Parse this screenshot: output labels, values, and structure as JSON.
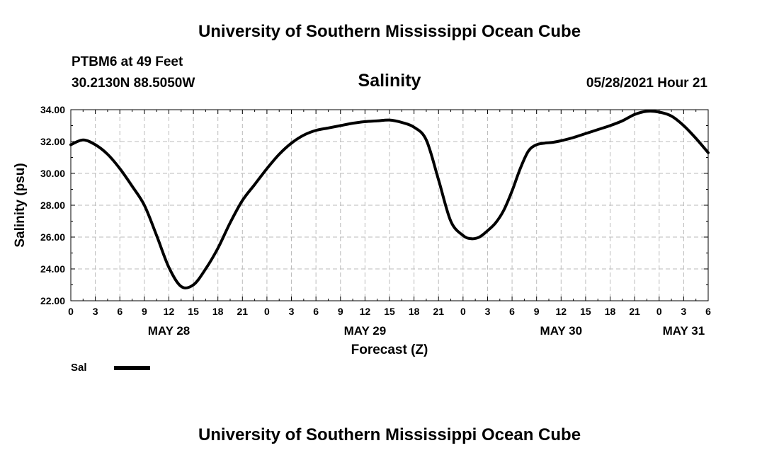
{
  "header": {
    "title_top": "University of Southern Mississippi Ocean Cube",
    "title_bottom": "University of Southern Mississippi Ocean Cube",
    "station": "PTBM6 at 49 Feet",
    "coords": "30.2130N  88.5050W",
    "datetime": "05/28/2021 Hour 21"
  },
  "chart_data": {
    "type": "line",
    "title": "Salinity",
    "xlabel": "Forecast (Z)",
    "ylabel": "Salinity (psu)",
    "ylim": [
      22,
      34
    ],
    "xlim_hours": [
      0,
      78
    ],
    "x_unit": "hours from 00Z May 28",
    "x_tick_labels": [
      "0",
      "3",
      "6",
      "9",
      "12",
      "15",
      "18",
      "21",
      "0",
      "3",
      "6",
      "9",
      "12",
      "15",
      "18",
      "21",
      "0",
      "3",
      "6",
      "9",
      "12",
      "15",
      "18",
      "21",
      "0",
      "3",
      "6"
    ],
    "date_labels": [
      {
        "label": "MAY 28",
        "hour": 12
      },
      {
        "label": "MAY 29",
        "hour": 36
      },
      {
        "label": "MAY 30",
        "hour": 60
      },
      {
        "label": "MAY 31",
        "hour": 75
      }
    ],
    "y_ticks": [
      "22.00",
      "24.00",
      "26.00",
      "28.00",
      "30.00",
      "32.00",
      "34.00"
    ],
    "grid": true,
    "legend": "bottom-left",
    "series": [
      {
        "name": "Sal",
        "color": "#000000",
        "x": [
          0,
          1.5,
          3,
          4.5,
          6,
          7.5,
          9,
          10.5,
          12,
          13.5,
          15,
          16.5,
          18,
          19.5,
          21,
          22.5,
          24,
          25.5,
          27,
          28.5,
          30,
          31.5,
          33,
          34.5,
          36,
          37.5,
          39,
          40.5,
          42,
          43.5,
          45,
          46.5,
          48,
          49,
          50,
          51,
          52,
          53,
          54,
          55,
          56,
          57,
          58,
          59,
          60,
          61.5,
          63,
          64.5,
          66,
          67.5,
          69,
          70.5,
          72,
          73.5,
          75,
          76.5,
          78
        ],
        "values": [
          31.8,
          32.1,
          31.8,
          31.2,
          30.3,
          29.2,
          28.0,
          26.1,
          24.1,
          22.9,
          23.0,
          24.0,
          25.3,
          26.9,
          28.3,
          29.3,
          30.3,
          31.2,
          31.9,
          32.4,
          32.7,
          32.85,
          33.0,
          33.15,
          33.25,
          33.3,
          33.35,
          33.2,
          32.9,
          32.1,
          29.6,
          27.0,
          26.1,
          25.9,
          26.0,
          26.4,
          26.9,
          27.7,
          28.9,
          30.3,
          31.4,
          31.8,
          31.9,
          31.95,
          32.05,
          32.25,
          32.5,
          32.75,
          33.0,
          33.3,
          33.7,
          33.9,
          33.85,
          33.6,
          33.0,
          32.2,
          31.3
        ]
      }
    ]
  }
}
